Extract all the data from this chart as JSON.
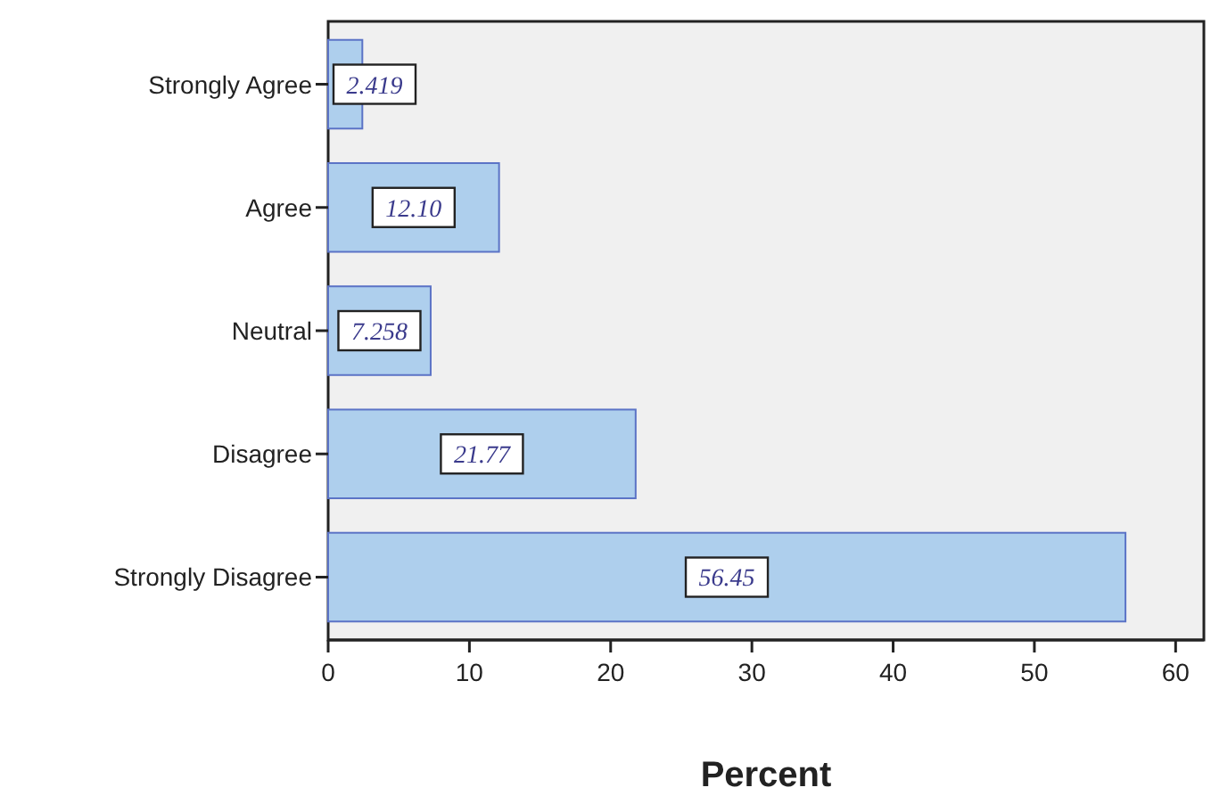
{
  "chart_data": {
    "type": "bar",
    "orientation": "horizontal",
    "xlabel": "Percent",
    "categories": [
      "Strongly Agree",
      "Agree",
      "Neutral",
      "Disagree",
      "Strongly Disagree"
    ],
    "values": [
      2.419,
      12.1,
      7.258,
      21.77,
      56.45
    ],
    "value_labels": [
      "2.419",
      "12.10",
      "7.258",
      "21.77",
      "56.45"
    ],
    "color": "#aecfed",
    "xlim": [
      0,
      62
    ],
    "xticks": [
      0,
      10,
      20,
      30,
      40,
      50,
      60
    ],
    "grid": false
  }
}
